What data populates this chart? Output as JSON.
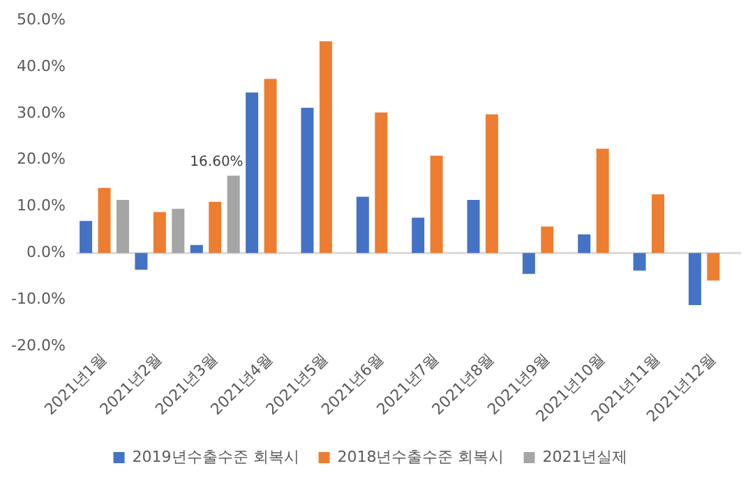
{
  "chart_data": {
    "type": "bar",
    "categories": [
      "2021년1월",
      "2021년2월",
      "2021년3월",
      "2021년4월",
      "2021년5월",
      "2021년6월",
      "2021년7월",
      "2021년8월",
      "2021년9월",
      "2021년10월",
      "2021년11월",
      "2021년12월"
    ],
    "series": [
      {
        "name": "2019년수출수준 회복시",
        "color": "#4472c4",
        "values": [
          6.9,
          -3.6,
          1.7,
          34.5,
          31.2,
          12.1,
          7.6,
          11.4,
          -4.5,
          4.0,
          -3.8,
          -11.2
        ]
      },
      {
        "name": "2018년수출수준 회복시",
        "color": "#ed7d31",
        "values": [
          14.0,
          8.8,
          11.0,
          37.4,
          45.5,
          30.2,
          20.9,
          29.8,
          5.7,
          22.4,
          12.6,
          -5.9
        ]
      },
      {
        "name": "2021년실제",
        "color": "#a5a5a5",
        "values": [
          11.4,
          9.5,
          16.6,
          null,
          null,
          null,
          null,
          null,
          null,
          null,
          null,
          null
        ],
        "value_labels": [
          null,
          null,
          "16.60%",
          null,
          null,
          null,
          null,
          null,
          null,
          null,
          null,
          null
        ]
      }
    ],
    "ylim": [
      -20,
      50
    ],
    "yticks": [
      {
        "value": -20,
        "label": "-20.0%"
      },
      {
        "value": -10,
        "label": "-10.0%"
      },
      {
        "value": 0,
        "label": "0.0%"
      },
      {
        "value": 10,
        "label": "10.0%"
      },
      {
        "value": 20,
        "label": "20.0%"
      },
      {
        "value": 30,
        "label": "30.0%"
      },
      {
        "value": 40,
        "label": "40.0%"
      },
      {
        "value": 50,
        "label": "50.0%"
      }
    ],
    "ref_lines": [
      {
        "axis": "y",
        "value": 0,
        "color": "#d9d9d9"
      }
    ],
    "grid": false,
    "legend": "bottom"
  }
}
